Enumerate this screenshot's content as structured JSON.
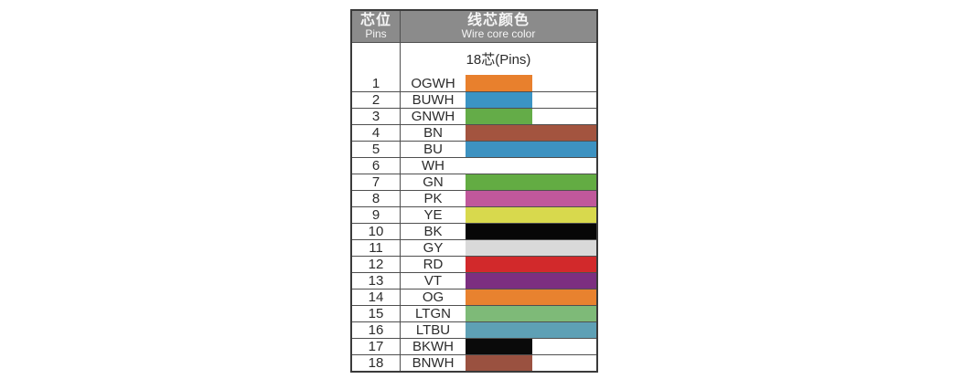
{
  "table": {
    "header": {
      "pins_zh": "芯位",
      "pins_en": "Pins",
      "color_zh": "线芯颜色",
      "color_en": "Wire core color"
    },
    "subheader": "18芯(Pins)",
    "rows": [
      {
        "pin": "1",
        "code": "OGWH",
        "color": "#E8802D",
        "fill": "half"
      },
      {
        "pin": "2",
        "code": "BUWH",
        "color": "#3B94C4",
        "fill": "half"
      },
      {
        "pin": "3",
        "code": "GNWH",
        "color": "#64AC48",
        "fill": "half"
      },
      {
        "pin": "4",
        "code": "BN",
        "color": "#A3543F",
        "fill": "full"
      },
      {
        "pin": "5",
        "code": "BU",
        "color": "#3D92C1",
        "fill": "full"
      },
      {
        "pin": "6",
        "code": "WH",
        "color": "#FFFFFF",
        "fill": "full"
      },
      {
        "pin": "7",
        "code": "GN",
        "color": "#63AC43",
        "fill": "full"
      },
      {
        "pin": "8",
        "code": "PK",
        "color": "#C0589B",
        "fill": "full"
      },
      {
        "pin": "9",
        "code": "YE",
        "color": "#D8D94D",
        "fill": "full"
      },
      {
        "pin": "10",
        "code": "BK",
        "color": "#070707",
        "fill": "full"
      },
      {
        "pin": "11",
        "code": "GY",
        "color": "#D9D9D9",
        "fill": "full"
      },
      {
        "pin": "12",
        "code": "RD",
        "color": "#D2292B",
        "fill": "full"
      },
      {
        "pin": "13",
        "code": "VT",
        "color": "#7C2F80",
        "fill": "full"
      },
      {
        "pin": "14",
        "code": "OG",
        "color": "#E8822F",
        "fill": "full"
      },
      {
        "pin": "15",
        "code": "LTGN",
        "color": "#7EBA78",
        "fill": "full"
      },
      {
        "pin": "16",
        "code": "LTBU",
        "color": "#5EA0B5",
        "fill": "full"
      },
      {
        "pin": "17",
        "code": "BKWH",
        "color": "#0A0A0A",
        "fill": "half"
      },
      {
        "pin": "18",
        "code": "BNWH",
        "color": "#9A5140",
        "fill": "half"
      }
    ]
  },
  "colors": {
    "header_bg": "#8B8B8B",
    "header_text": "#F5F5F5",
    "border_outer": "#3A3A3A",
    "border_inner": "#4F4F4F",
    "text": "#2B2B2B",
    "page_bg": "#FFFFFF"
  }
}
